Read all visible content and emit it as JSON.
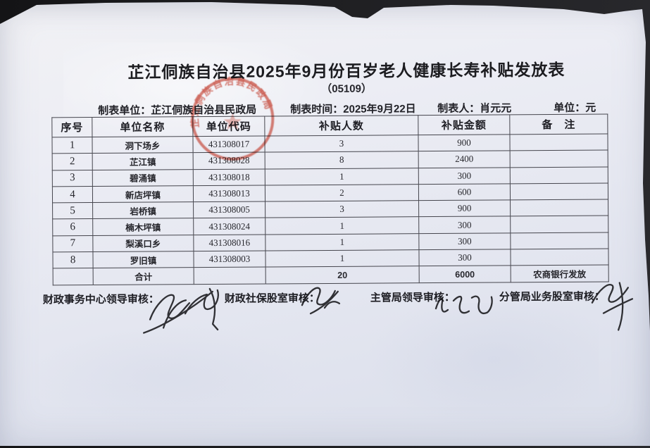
{
  "document": {
    "title": "芷江侗族自治县2025年9月份百岁老人健康长寿补贴发放表",
    "subtitle": "（05109）",
    "meta": [
      "制表单位：芷江侗族自治县民政局",
      "制表时间：2025年9月22日",
      "制表人：肖元元",
      "单位：元"
    ],
    "stamp": {
      "arc_text": "芷江侗族自治县民政局",
      "color": "#c23b2c"
    },
    "table": {
      "headers": [
        "序号",
        "单位名称",
        "单位代码",
        "补贴人数",
        "补贴金额",
        "备　注"
      ],
      "rows": [
        [
          "1",
          "洞下场乡",
          "431308017",
          "3",
          "900",
          ""
        ],
        [
          "2",
          "芷江镇",
          "431308028",
          "8",
          "2400",
          ""
        ],
        [
          "3",
          "碧涌镇",
          "431308018",
          "1",
          "300",
          ""
        ],
        [
          "4",
          "新店坪镇",
          "431308013",
          "2",
          "600",
          ""
        ],
        [
          "5",
          "岩桥镇",
          "431308005",
          "3",
          "900",
          ""
        ],
        [
          "6",
          "楠木坪镇",
          "431308024",
          "1",
          "300",
          ""
        ],
        [
          "7",
          "梨溪口乡",
          "431308016",
          "1",
          "300",
          ""
        ],
        [
          "8",
          "罗旧镇",
          "431308003",
          "1",
          "300",
          ""
        ]
      ],
      "total_row": [
        "",
        "合计",
        "",
        "20",
        "6000",
        "农商银行发放"
      ]
    },
    "footer_labels": [
      "财政事务中心领导审核：",
      "财政社保股室审核：",
      "主管局领导审核：",
      "分管局业务股室审核："
    ]
  },
  "colors": {
    "paper": "#e9ebf3",
    "background": "#1b1b1e",
    "ink": "#222228",
    "table_border": "#46464e",
    "stamp_red": "#c23b2c"
  }
}
